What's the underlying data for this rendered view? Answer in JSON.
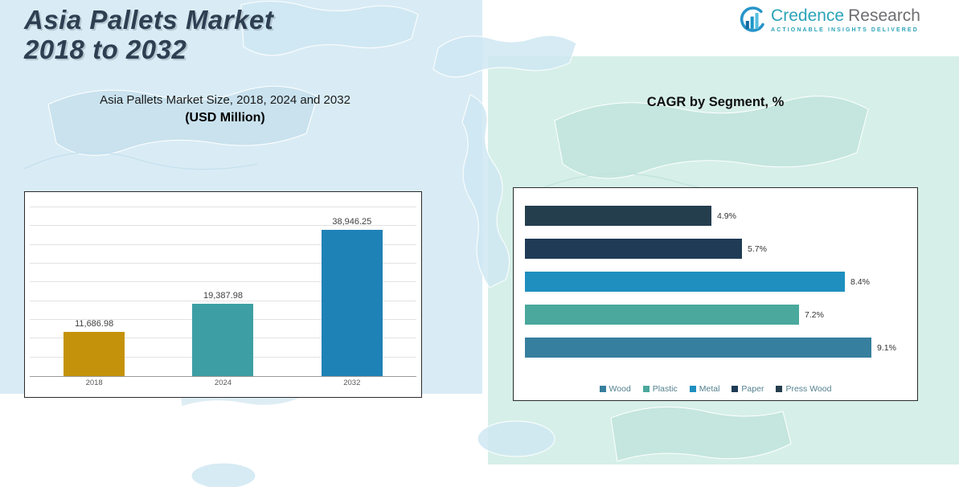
{
  "header": {
    "title": "Asia Pallets Market\n2018 to 2032",
    "logo": {
      "brand_primary": "Credence",
      "brand_secondary": "Research",
      "tagline": "Actionable Insights Delivered"
    }
  },
  "colors": {
    "panel_left_bg": "#d9ecf5",
    "panel_right_bg": "#d6efe9",
    "title_color": "#2e3f52",
    "brand_teal": "#2ba3b8"
  },
  "chart_data": [
    {
      "type": "bar",
      "title": "Asia Pallets Market Size, 2018, 2024 and 2032",
      "subtitle": "(USD Million)",
      "categories": [
        "2018",
        "2024",
        "2032"
      ],
      "values": [
        11686.98,
        19387.98,
        38946.25
      ],
      "value_labels": [
        "11,686.98",
        "19,387.98",
        "38,946.25"
      ],
      "bar_colors": [
        "#c5930b",
        "#3d9fa4",
        "#1e82b6"
      ],
      "ylabel": "",
      "xlabel": "",
      "ylim": [
        0,
        45000
      ],
      "grid": true,
      "gridline_count": 9,
      "legend_position": "none"
    },
    {
      "type": "bar",
      "orientation": "horizontal",
      "title": "CAGR by Segment, %",
      "categories": [
        "Press Wood",
        "Paper",
        "Metal",
        "Plastic",
        "Wood"
      ],
      "values": [
        4.9,
        5.7,
        8.4,
        7.2,
        9.1
      ],
      "value_labels": [
        "4.9%",
        "5.7%",
        "8.4%",
        "7.2%",
        "9.1%"
      ],
      "bar_colors": [
        "#253e4e",
        "#1f3b55",
        "#1e8fbf",
        "#4aa89d",
        "#377f9e"
      ],
      "xlim": [
        0,
        10
      ],
      "grid": false,
      "legend_position": "bottom",
      "legend": [
        {
          "label": "Wood",
          "color": "#377f9e"
        },
        {
          "label": "Plastic",
          "color": "#4aa89d"
        },
        {
          "label": "Metal",
          "color": "#1e8fbf"
        },
        {
          "label": "Paper",
          "color": "#1f3b55"
        },
        {
          "label": "Press Wood",
          "color": "#253e4e"
        }
      ]
    }
  ]
}
